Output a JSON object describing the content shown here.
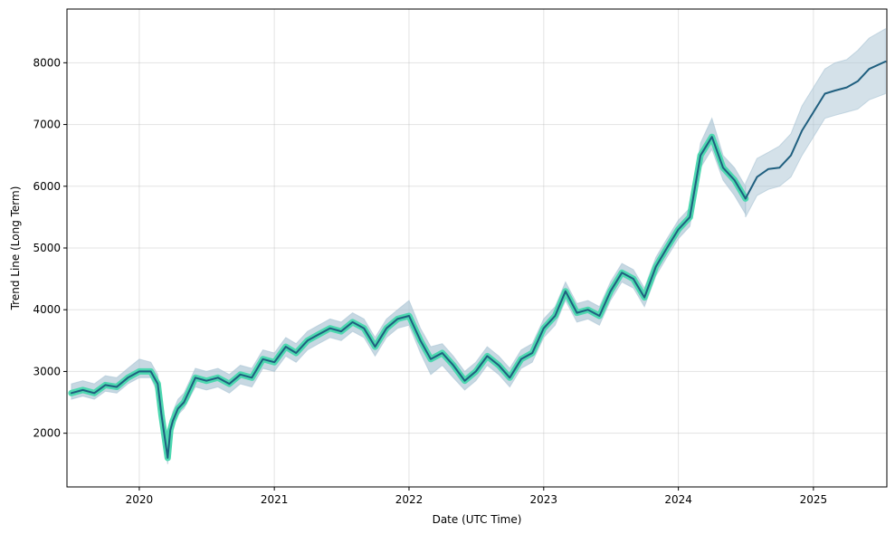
{
  "chart_data": {
    "type": "line",
    "title": "",
    "xlabel": "Date (UTC Time)",
    "ylabel": "Trend Line (Long Term)",
    "x_range": [
      "2019-06-19",
      "2025-07-19"
    ],
    "ylim": [
      1130,
      8870
    ],
    "x_ticks": [
      {
        "date": "2020-01-01",
        "label": "2020"
      },
      {
        "date": "2021-01-01",
        "label": "2021"
      },
      {
        "date": "2022-01-01",
        "label": "2022"
      },
      {
        "date": "2023-01-01",
        "label": "2023"
      },
      {
        "date": "2024-01-01",
        "label": "2024"
      },
      {
        "date": "2025-01-01",
        "label": "2025"
      }
    ],
    "y_ticks": [
      2000,
      3000,
      4000,
      5000,
      6000,
      7000,
      8000
    ],
    "grid": true,
    "colors": {
      "trend_line": "#1f5f7f",
      "historical_highlight": "#4dd8b0",
      "uncertainty_band": "#a9c3d3"
    },
    "series": [
      {
        "kind": "historical",
        "x": [
          "2019-07-01",
          "2019-08-01",
          "2019-09-01",
          "2019-10-01",
          "2019-11-01",
          "2019-12-01",
          "2020-01-01",
          "2020-02-01",
          "2020-02-20",
          "2020-03-01",
          "2020-03-18",
          "2020-03-25",
          "2020-04-01",
          "2020-04-15",
          "2020-05-01",
          "2020-06-01",
          "2020-07-01",
          "2020-08-01",
          "2020-09-01",
          "2020-10-01",
          "2020-11-01",
          "2020-12-01",
          "2021-01-01",
          "2021-02-01",
          "2021-03-01",
          "2021-04-01",
          "2021-05-01",
          "2021-06-01",
          "2021-07-01",
          "2021-08-01",
          "2021-09-01",
          "2021-10-01",
          "2021-11-01",
          "2021-12-01",
          "2022-01-01",
          "2022-02-01",
          "2022-03-01",
          "2022-04-01",
          "2022-05-01",
          "2022-06-01",
          "2022-07-01",
          "2022-08-01",
          "2022-09-01",
          "2022-10-01",
          "2022-11-01",
          "2022-12-01",
          "2023-01-01",
          "2023-02-01",
          "2023-03-01",
          "2023-04-01",
          "2023-05-01",
          "2023-06-01",
          "2023-07-01",
          "2023-08-01",
          "2023-09-01",
          "2023-10-01",
          "2023-11-01",
          "2023-12-01",
          "2024-01-01",
          "2024-02-01",
          "2024-03-01",
          "2024-04-01",
          "2024-05-01",
          "2024-06-01",
          "2024-07-01"
        ],
        "y": [
          2650,
          2700,
          2650,
          2780,
          2750,
          2900,
          3000,
          3000,
          2800,
          2300,
          1600,
          2050,
          2200,
          2400,
          2500,
          2900,
          2850,
          2900,
          2800,
          2950,
          2900,
          3200,
          3150,
          3400,
          3300,
          3500,
          3600,
          3700,
          3650,
          3800,
          3700,
          3400,
          3700,
          3850,
          3900,
          3500,
          3200,
          3300,
          3100,
          2850,
          3000,
          3250,
          3100,
          2900,
          3200,
          3300,
          3700,
          3900,
          4300,
          3950,
          4000,
          3900,
          4300,
          4600,
          4500,
          4200,
          4700,
          5000,
          5300,
          5500,
          6500,
          6800,
          6300,
          6100,
          5800
        ],
        "band_low": [
          2550,
          2600,
          2550,
          2680,
          2650,
          2800,
          2900,
          2900,
          2650,
          2150,
          1500,
          1950,
          2100,
          2300,
          2400,
          2750,
          2700,
          2750,
          2650,
          2800,
          2750,
          3050,
          3000,
          3250,
          3150,
          3350,
          3450,
          3550,
          3500,
          3650,
          3550,
          3250,
          3550,
          3700,
          3750,
          3300,
          2950,
          3100,
          2900,
          2700,
          2850,
          3100,
          2950,
          2750,
          3050,
          3150,
          3550,
          3750,
          4150,
          3800,
          3850,
          3750,
          4150,
          4450,
          4350,
          4050,
          4550,
          4850,
          5150,
          5350,
          6300,
          6600,
          6100,
          5850,
          5550
        ],
        "band_high": [
          2800,
          2850,
          2800,
          2930,
          2900,
          3050,
          3200,
          3150,
          2950,
          2450,
          1750,
          2200,
          2350,
          2550,
          2650,
          3050,
          3000,
          3050,
          2950,
          3100,
          3050,
          3350,
          3300,
          3550,
          3450,
          3650,
          3750,
          3850,
          3800,
          3950,
          3850,
          3550,
          3850,
          4000,
          4150,
          3700,
          3400,
          3450,
          3250,
          3000,
          3150,
          3400,
          3250,
          3050,
          3350,
          3450,
          3850,
          4050,
          4450,
          4100,
          4150,
          4050,
          4450,
          4750,
          4650,
          4350,
          4850,
          5150,
          5450,
          5650,
          6700,
          7100,
          6500,
          6300,
          6000
        ]
      },
      {
        "kind": "forecast",
        "x": [
          "2024-07-01",
          "2024-08-01",
          "2024-09-01",
          "2024-10-01",
          "2024-11-01",
          "2024-12-01",
          "2025-01-01",
          "2025-02-01",
          "2025-03-01",
          "2025-04-01",
          "2025-05-01",
          "2025-06-01",
          "2025-07-15"
        ],
        "y": [
          5800,
          6150,
          6280,
          6300,
          6500,
          6900,
          7200,
          7500,
          7550,
          7600,
          7700,
          7900,
          8020
        ],
        "band_low": [
          5500,
          5850,
          5950,
          6000,
          6150,
          6500,
          6800,
          7100,
          7150,
          7200,
          7250,
          7400,
          7500
        ],
        "band_high": [
          6050,
          6450,
          6550,
          6650,
          6850,
          7300,
          7600,
          7900,
          8000,
          8050,
          8200,
          8400,
          8550
        ]
      }
    ]
  }
}
